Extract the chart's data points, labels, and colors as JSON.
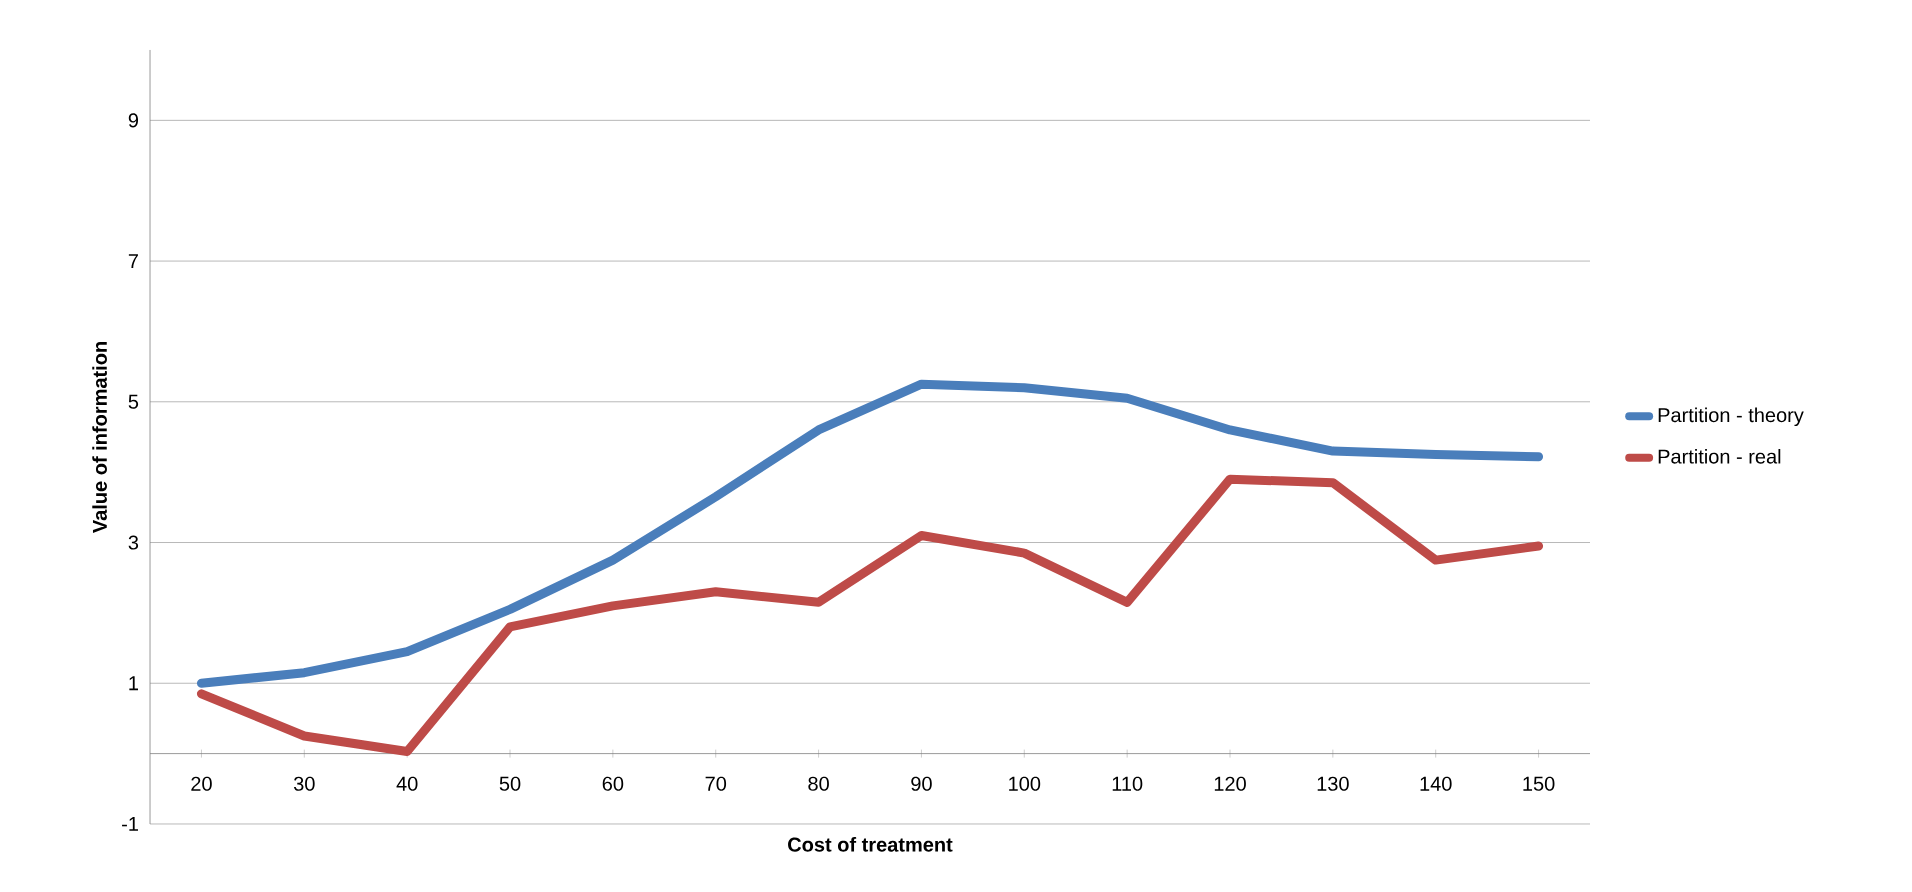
{
  "chart_data": {
    "type": "line",
    "xlabel": "Cost of treatment",
    "ylabel": "Value of information",
    "categories": [
      "20",
      "30",
      "40",
      "50",
      "60",
      "70",
      "80",
      "90",
      "100",
      "110",
      "120",
      "130",
      "140",
      "150"
    ],
    "series": [
      {
        "name": "Partition - theory",
        "color": "#4a7ebb",
        "values": [
          1.0,
          1.15,
          1.45,
          2.05,
          2.75,
          3.65,
          4.6,
          5.25,
          5.2,
          5.05,
          4.6,
          4.3,
          4.25,
          4.22
        ]
      },
      {
        "name": "Partition - real",
        "color": "#be4b48",
        "values": [
          0.85,
          0.25,
          0.03,
          1.8,
          2.1,
          2.3,
          2.15,
          3.1,
          2.85,
          2.15,
          3.9,
          3.85,
          2.75,
          2.95
        ]
      }
    ],
    "ylim": [
      -1,
      10
    ],
    "yticks": [
      -1,
      1,
      3,
      5,
      7,
      9
    ],
    "grid": "y",
    "legend": "right",
    "marker": "none",
    "line_style": "solid"
  }
}
